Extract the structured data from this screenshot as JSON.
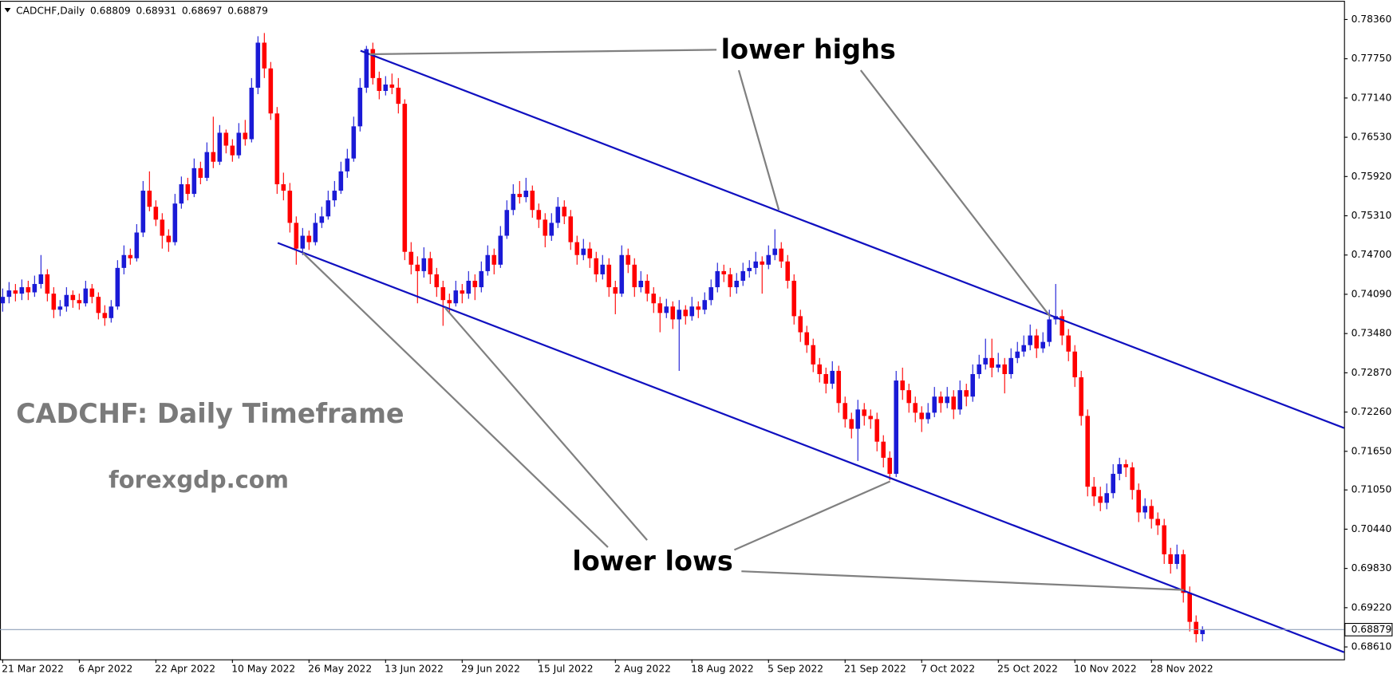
{
  "chart_data": {
    "type": "candlestick",
    "symbol_label": "CADCHF,Daily",
    "up_color": "#1a1ad6",
    "down_color": "#ff0000",
    "annotations": [
      "lower highs",
      "lower lows",
      "CADCHF: Daily Timeframe",
      "forexgdp.com"
    ],
    "ylim": [
      0.68417,
      0.7865
    ],
    "yticks": [
      {
        "value": 0.7836,
        "label": "0.78360"
      },
      {
        "value": 0.7775,
        "label": "0.77750"
      },
      {
        "value": 0.7714,
        "label": "0.77140"
      },
      {
        "value": 0.7653,
        "label": "0.76530"
      },
      {
        "value": 0.7592,
        "label": "0.75920"
      },
      {
        "value": 0.7531,
        "label": "0.75310"
      },
      {
        "value": 0.747,
        "label": "0.74700"
      },
      {
        "value": 0.7409,
        "label": "0.74090"
      },
      {
        "value": 0.7348,
        "label": "0.73480"
      },
      {
        "value": 0.7287,
        "label": "0.72870"
      },
      {
        "value": 0.7226,
        "label": "0.72260"
      },
      {
        "value": 0.7165,
        "label": "0.71650"
      },
      {
        "value": 0.7105,
        "label": "0.71050"
      },
      {
        "value": 0.7044,
        "label": "0.70440"
      },
      {
        "value": 0.6983,
        "label": "0.69830"
      },
      {
        "value": 0.6922,
        "label": "0.69220"
      },
      {
        "value": 0.6861,
        "label": "0.68610"
      }
    ],
    "categories": [
      "21 Mar 2022",
      null,
      null,
      null,
      null,
      null,
      null,
      null,
      null,
      null,
      null,
      null,
      "6 Apr 2022",
      null,
      null,
      null,
      null,
      null,
      null,
      null,
      null,
      null,
      null,
      null,
      "22 Apr 2022",
      null,
      null,
      null,
      null,
      null,
      null,
      null,
      null,
      null,
      null,
      null,
      "10 May 2022",
      null,
      null,
      null,
      null,
      null,
      null,
      null,
      null,
      null,
      null,
      null,
      "26 May 2022",
      null,
      null,
      null,
      null,
      null,
      null,
      null,
      null,
      null,
      null,
      null,
      "13 Jun 2022",
      null,
      null,
      null,
      null,
      null,
      null,
      null,
      null,
      null,
      null,
      null,
      "29 Jun 2022",
      null,
      null,
      null,
      null,
      null,
      null,
      null,
      null,
      null,
      null,
      null,
      "15 Jul 2022",
      null,
      null,
      null,
      null,
      null,
      null,
      null,
      null,
      null,
      null,
      null,
      "2 Aug 2022",
      null,
      null,
      null,
      null,
      null,
      null,
      null,
      null,
      null,
      null,
      null,
      "18 Aug 2022",
      null,
      null,
      null,
      null,
      null,
      null,
      null,
      null,
      null,
      null,
      null,
      "5 Sep 2022",
      null,
      null,
      null,
      null,
      null,
      null,
      null,
      null,
      null,
      null,
      null,
      "21 Sep 2022",
      null,
      null,
      null,
      null,
      null,
      null,
      null,
      null,
      null,
      null,
      null,
      "7 Oct 2022",
      null,
      null,
      null,
      null,
      null,
      null,
      null,
      null,
      null,
      null,
      null,
      "25 Oct 2022",
      null,
      null,
      null,
      null,
      null,
      null,
      null,
      null,
      null,
      null,
      null,
      "10 Nov 2022",
      null,
      null,
      null,
      null,
      null,
      null,
      null,
      null,
      null,
      null,
      null,
      "28 Nov 2022",
      null,
      null,
      null,
      null,
      null,
      null,
      null,
      null
    ],
    "values": [
      [
        0.7395,
        0.7418,
        0.7382,
        0.7405
      ],
      [
        0.7405,
        0.7428,
        0.7395,
        0.7415
      ],
      [
        0.7415,
        0.7425,
        0.7398,
        0.741
      ],
      [
        0.741,
        0.7432,
        0.74,
        0.742
      ],
      [
        0.742,
        0.743,
        0.74,
        0.7412
      ],
      [
        0.7412,
        0.7438,
        0.7405,
        0.7425
      ],
      [
        0.7425,
        0.747,
        0.7418,
        0.744
      ],
      [
        0.744,
        0.7448,
        0.7398,
        0.741
      ],
      [
        0.741,
        0.742,
        0.7372,
        0.7385
      ],
      [
        0.7385,
        0.74,
        0.7375,
        0.739
      ],
      [
        0.739,
        0.742,
        0.7382,
        0.7408
      ],
      [
        0.7408,
        0.7415,
        0.7388,
        0.74
      ],
      [
        0.74,
        0.741,
        0.7385,
        0.7395
      ],
      [
        0.7395,
        0.743,
        0.739,
        0.7418
      ],
      [
        0.7418,
        0.7425,
        0.7395,
        0.7405
      ],
      [
        0.7405,
        0.7412,
        0.737,
        0.738
      ],
      [
        0.738,
        0.7392,
        0.736,
        0.7372
      ],
      [
        0.7372,
        0.74,
        0.7365,
        0.739
      ],
      [
        0.739,
        0.7462,
        0.7385,
        0.745
      ],
      [
        0.745,
        0.7485,
        0.744,
        0.747
      ],
      [
        0.747,
        0.748,
        0.7455,
        0.7465
      ],
      [
        0.7465,
        0.7518,
        0.746,
        0.7505
      ],
      [
        0.7505,
        0.7585,
        0.7498,
        0.757
      ],
      [
        0.757,
        0.76,
        0.7538,
        0.7545
      ],
      [
        0.7545,
        0.7555,
        0.7515,
        0.7525
      ],
      [
        0.7525,
        0.7535,
        0.748,
        0.75
      ],
      [
        0.75,
        0.751,
        0.7475,
        0.749
      ],
      [
        0.749,
        0.7565,
        0.7485,
        0.755
      ],
      [
        0.755,
        0.7592,
        0.7542,
        0.758
      ],
      [
        0.758,
        0.759,
        0.7555,
        0.7565
      ],
      [
        0.7565,
        0.762,
        0.756,
        0.7605
      ],
      [
        0.7605,
        0.7615,
        0.758,
        0.759
      ],
      [
        0.759,
        0.7645,
        0.7585,
        0.763
      ],
      [
        0.763,
        0.7685,
        0.7605,
        0.7615
      ],
      [
        0.7615,
        0.7672,
        0.761,
        0.766
      ],
      [
        0.766,
        0.7665,
        0.7628,
        0.764
      ],
      [
        0.764,
        0.765,
        0.7615,
        0.7625
      ],
      [
        0.7625,
        0.7675,
        0.762,
        0.766
      ],
      [
        0.766,
        0.768,
        0.764,
        0.765
      ],
      [
        0.765,
        0.7745,
        0.7645,
        0.773
      ],
      [
        0.773,
        0.781,
        0.772,
        0.78
      ],
      [
        0.78,
        0.7815,
        0.7745,
        0.776
      ],
      [
        0.776,
        0.777,
        0.768,
        0.769
      ],
      [
        0.769,
        0.77,
        0.7565,
        0.758
      ],
      [
        0.758,
        0.7598,
        0.7555,
        0.757
      ],
      [
        0.757,
        0.7582,
        0.7505,
        0.752
      ],
      [
        0.752,
        0.753,
        0.7455,
        0.748
      ],
      [
        0.748,
        0.7512,
        0.747,
        0.75
      ],
      [
        0.75,
        0.7508,
        0.7478,
        0.749
      ],
      [
        0.749,
        0.7535,
        0.7485,
        0.752
      ],
      [
        0.752,
        0.7545,
        0.7512,
        0.753
      ],
      [
        0.753,
        0.757,
        0.7525,
        0.7555
      ],
      [
        0.7555,
        0.7585,
        0.7545,
        0.757
      ],
      [
        0.757,
        0.7615,
        0.7565,
        0.76
      ],
      [
        0.76,
        0.7635,
        0.759,
        0.762
      ],
      [
        0.762,
        0.7685,
        0.7615,
        0.767
      ],
      [
        0.767,
        0.7745,
        0.7662,
        0.773
      ],
      [
        0.773,
        0.7795,
        0.7722,
        0.779
      ],
      [
        0.779,
        0.78,
        0.7735,
        0.7745
      ],
      [
        0.7745,
        0.7755,
        0.7712,
        0.7725
      ],
      [
        0.7725,
        0.7748,
        0.7718,
        0.7735
      ],
      [
        0.7735,
        0.7752,
        0.772,
        0.773
      ],
      [
        0.773,
        0.7745,
        0.769,
        0.7705
      ],
      [
        0.7705,
        0.7712,
        0.7462,
        0.7475
      ],
      [
        0.7475,
        0.749,
        0.744,
        0.7455
      ],
      [
        0.7455,
        0.7468,
        0.7395,
        0.7445
      ],
      [
        0.7445,
        0.7482,
        0.7435,
        0.7465
      ],
      [
        0.7465,
        0.7475,
        0.7425,
        0.744
      ],
      [
        0.744,
        0.745,
        0.7405,
        0.742
      ],
      [
        0.742,
        0.743,
        0.736,
        0.74
      ],
      [
        0.74,
        0.741,
        0.738,
        0.7395
      ],
      [
        0.7395,
        0.743,
        0.739,
        0.7415
      ],
      [
        0.7415,
        0.7425,
        0.7395,
        0.741
      ],
      [
        0.741,
        0.7445,
        0.7402,
        0.743
      ],
      [
        0.743,
        0.744,
        0.74,
        0.742
      ],
      [
        0.742,
        0.746,
        0.7412,
        0.7445
      ],
      [
        0.7445,
        0.7485,
        0.7438,
        0.747
      ],
      [
        0.747,
        0.748,
        0.744,
        0.7455
      ],
      [
        0.7455,
        0.7515,
        0.745,
        0.75
      ],
      [
        0.75,
        0.7555,
        0.7495,
        0.754
      ],
      [
        0.754,
        0.758,
        0.7532,
        0.7565
      ],
      [
        0.7565,
        0.7585,
        0.755,
        0.756
      ],
      [
        0.756,
        0.759,
        0.7552,
        0.757
      ],
      [
        0.757,
        0.7578,
        0.7528,
        0.754
      ],
      [
        0.754,
        0.755,
        0.7512,
        0.7525
      ],
      [
        0.7525,
        0.7535,
        0.7482,
        0.75
      ],
      [
        0.75,
        0.7535,
        0.7492,
        0.752
      ],
      [
        0.752,
        0.756,
        0.7512,
        0.7545
      ],
      [
        0.7545,
        0.7555,
        0.7518,
        0.753
      ],
      [
        0.753,
        0.754,
        0.7478,
        0.749
      ],
      [
        0.749,
        0.75,
        0.7455,
        0.747
      ],
      [
        0.747,
        0.7495,
        0.7462,
        0.748
      ],
      [
        0.748,
        0.749,
        0.745,
        0.7465
      ],
      [
        0.7465,
        0.7475,
        0.7428,
        0.744
      ],
      [
        0.744,
        0.747,
        0.7432,
        0.7455
      ],
      [
        0.7455,
        0.7465,
        0.7405,
        0.742
      ],
      [
        0.742,
        0.743,
        0.7378,
        0.741
      ],
      [
        0.741,
        0.7485,
        0.7405,
        0.747
      ],
      [
        0.747,
        0.748,
        0.7442,
        0.7455
      ],
      [
        0.7455,
        0.7465,
        0.7405,
        0.742
      ],
      [
        0.742,
        0.7445,
        0.7412,
        0.743
      ],
      [
        0.743,
        0.744,
        0.7398,
        0.741
      ],
      [
        0.741,
        0.742,
        0.738,
        0.7395
      ],
      [
        0.7395,
        0.7405,
        0.735,
        0.738
      ],
      [
        0.738,
        0.7402,
        0.7372,
        0.739
      ],
      [
        0.739,
        0.7398,
        0.7355,
        0.737
      ],
      [
        0.737,
        0.74,
        0.729,
        0.7385
      ],
      [
        0.7385,
        0.7392,
        0.7362,
        0.7375
      ],
      [
        0.7375,
        0.7405,
        0.7368,
        0.739
      ],
      [
        0.739,
        0.7398,
        0.7372,
        0.7385
      ],
      [
        0.7385,
        0.7412,
        0.7378,
        0.74
      ],
      [
        0.74,
        0.7432,
        0.7392,
        0.742
      ],
      [
        0.742,
        0.7458,
        0.7412,
        0.7445
      ],
      [
        0.7445,
        0.7455,
        0.7428,
        0.744
      ],
      [
        0.744,
        0.745,
        0.7405,
        0.742
      ],
      [
        0.742,
        0.7442,
        0.741,
        0.743
      ],
      [
        0.743,
        0.7458,
        0.7422,
        0.7445
      ],
      [
        0.7445,
        0.7462,
        0.7435,
        0.745
      ],
      [
        0.745,
        0.7475,
        0.744,
        0.746
      ],
      [
        0.746,
        0.7468,
        0.741,
        0.7455
      ],
      [
        0.7455,
        0.7485,
        0.7448,
        0.747
      ],
      [
        0.747,
        0.751,
        0.7462,
        0.748
      ],
      [
        0.748,
        0.749,
        0.745,
        0.746
      ],
      [
        0.746,
        0.747,
        0.7418,
        0.743
      ],
      [
        0.743,
        0.744,
        0.7362,
        0.7375
      ],
      [
        0.7375,
        0.7385,
        0.7335,
        0.735
      ],
      [
        0.735,
        0.736,
        0.7318,
        0.733
      ],
      [
        0.733,
        0.734,
        0.7288,
        0.73
      ],
      [
        0.73,
        0.731,
        0.7272,
        0.7285
      ],
      [
        0.7285,
        0.7295,
        0.7255,
        0.727
      ],
      [
        0.727,
        0.7305,
        0.7262,
        0.729
      ],
      [
        0.729,
        0.7298,
        0.7225,
        0.724
      ],
      [
        0.724,
        0.725,
        0.7202,
        0.7215
      ],
      [
        0.7215,
        0.7225,
        0.7185,
        0.72
      ],
      [
        0.72,
        0.7245,
        0.715,
        0.723
      ],
      [
        0.723,
        0.724,
        0.7205,
        0.722
      ],
      [
        0.722,
        0.723,
        0.72,
        0.7215
      ],
      [
        0.7215,
        0.7225,
        0.7165,
        0.718
      ],
      [
        0.718,
        0.719,
        0.714,
        0.7155
      ],
      [
        0.7155,
        0.7165,
        0.712,
        0.713
      ],
      [
        0.713,
        0.729,
        0.7125,
        0.7275
      ],
      [
        0.7275,
        0.7295,
        0.7245,
        0.726
      ],
      [
        0.726,
        0.727,
        0.7225,
        0.724
      ],
      [
        0.724,
        0.725,
        0.721,
        0.7225
      ],
      [
        0.7225,
        0.7235,
        0.7195,
        0.7215
      ],
      [
        0.7215,
        0.724,
        0.7208,
        0.7225
      ],
      [
        0.7225,
        0.7265,
        0.7218,
        0.725
      ],
      [
        0.725,
        0.7258,
        0.7225,
        0.724
      ],
      [
        0.724,
        0.7265,
        0.7232,
        0.725
      ],
      [
        0.725,
        0.726,
        0.7215,
        0.723
      ],
      [
        0.723,
        0.7275,
        0.7222,
        0.726
      ],
      [
        0.726,
        0.727,
        0.7235,
        0.725
      ],
      [
        0.725,
        0.73,
        0.7242,
        0.7285
      ],
      [
        0.7285,
        0.7315,
        0.7278,
        0.73
      ],
      [
        0.73,
        0.734,
        0.7292,
        0.731
      ],
      [
        0.731,
        0.734,
        0.728,
        0.7295
      ],
      [
        0.7295,
        0.7318,
        0.7288,
        0.73
      ],
      [
        0.73,
        0.731,
        0.7255,
        0.7285
      ],
      [
        0.7285,
        0.7325,
        0.7278,
        0.731
      ],
      [
        0.731,
        0.7335,
        0.7302,
        0.732
      ],
      [
        0.732,
        0.7345,
        0.7312,
        0.733
      ],
      [
        0.733,
        0.7362,
        0.7322,
        0.7345
      ],
      [
        0.7345,
        0.7355,
        0.731,
        0.7325
      ],
      [
        0.7325,
        0.735,
        0.7318,
        0.7335
      ],
      [
        0.7335,
        0.7385,
        0.7328,
        0.737
      ],
      [
        0.737,
        0.7425,
        0.7362,
        0.7375
      ],
      [
        0.7375,
        0.7385,
        0.733,
        0.7345
      ],
      [
        0.7345,
        0.7355,
        0.7305,
        0.732
      ],
      [
        0.732,
        0.733,
        0.7265,
        0.728
      ],
      [
        0.728,
        0.729,
        0.7205,
        0.722
      ],
      [
        0.722,
        0.723,
        0.7095,
        0.711
      ],
      [
        0.711,
        0.7125,
        0.708,
        0.7095
      ],
      [
        0.7095,
        0.711,
        0.7072,
        0.7085
      ],
      [
        0.7085,
        0.7115,
        0.7075,
        0.71
      ],
      [
        0.71,
        0.7145,
        0.7092,
        0.713
      ],
      [
        0.713,
        0.7155,
        0.712,
        0.7145
      ],
      [
        0.7145,
        0.7152,
        0.7125,
        0.714
      ],
      [
        0.714,
        0.7148,
        0.709,
        0.7105
      ],
      [
        0.7105,
        0.7115,
        0.7055,
        0.707
      ],
      [
        0.707,
        0.7092,
        0.706,
        0.708
      ],
      [
        0.708,
        0.709,
        0.7045,
        0.706
      ],
      [
        0.706,
        0.707,
        0.7035,
        0.705
      ],
      [
        0.705,
        0.706,
        0.699,
        0.7005
      ],
      [
        0.7005,
        0.7015,
        0.6975,
        0.699
      ],
      [
        0.699,
        0.702,
        0.6982,
        0.7005
      ],
      [
        0.7005,
        0.7012,
        0.693,
        0.6945
      ],
      [
        0.6945,
        0.6955,
        0.6885,
        0.69
      ],
      [
        0.69,
        0.691,
        0.6868,
        0.68809
      ],
      [
        0.68809,
        0.68931,
        0.68697,
        0.68879
      ]
    ]
  }
}
